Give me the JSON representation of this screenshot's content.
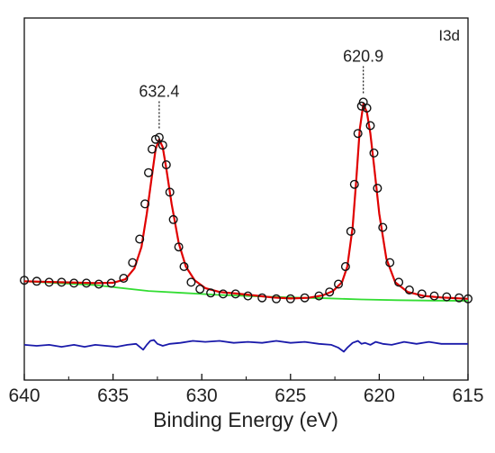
{
  "chart_data": {
    "type": "line",
    "title": "",
    "panel_label": "I3d",
    "xlabel": "Binding Energy (eV)",
    "ylabel": "",
    "xlim": [
      640,
      615
    ],
    "x_reversed": true,
    "y_ticks_shown": false,
    "grid": false,
    "legend": "none",
    "x_ticks": [
      640,
      635,
      630,
      625,
      620,
      615
    ],
    "x_tick_labels": [
      "640",
      "635",
      "630",
      "625",
      "620",
      "615"
    ],
    "annotations": [
      {
        "text": "632.4",
        "x": 632.4
      },
      {
        "text": "620.9",
        "x": 620.9
      }
    ],
    "colors": {
      "raw": "#111111",
      "fit": "#e00000",
      "background": "#33dd33",
      "residual": "#1a1aaa"
    },
    "series": [
      {
        "role": "raw",
        "marker": "open-circle",
        "x": [
          640.0,
          639.3,
          638.6,
          637.9,
          637.2,
          636.5,
          635.8,
          635.1,
          634.4,
          633.9,
          633.5,
          633.2,
          633.0,
          632.8,
          632.6,
          632.4,
          632.2,
          632.0,
          631.8,
          631.6,
          631.3,
          631.0,
          630.6,
          630.1,
          629.5,
          628.8,
          628.1,
          627.4,
          626.6,
          625.8,
          625.0,
          624.2,
          623.4,
          622.8,
          622.3,
          621.9,
          621.6,
          621.4,
          621.2,
          621.0,
          620.9,
          620.7,
          620.5,
          620.3,
          620.1,
          619.8,
          619.4,
          618.9,
          618.3,
          617.6,
          616.9,
          616.2,
          615.5,
          615.0
        ],
        "y": [
          0.11,
          0.105,
          0.1,
          0.1,
          0.095,
          0.095,
          0.09,
          0.095,
          0.12,
          0.2,
          0.32,
          0.5,
          0.66,
          0.78,
          0.83,
          0.84,
          0.8,
          0.7,
          0.56,
          0.42,
          0.28,
          0.18,
          0.1,
          0.065,
          0.045,
          0.04,
          0.04,
          0.03,
          0.02,
          0.015,
          0.015,
          0.02,
          0.03,
          0.05,
          0.09,
          0.18,
          0.36,
          0.6,
          0.86,
          1.0,
          1.02,
          0.99,
          0.9,
          0.76,
          0.58,
          0.38,
          0.2,
          0.1,
          0.06,
          0.04,
          0.03,
          0.025,
          0.02,
          0.015
        ]
      },
      {
        "role": "fit",
        "x": [
          640.0,
          638.0,
          636.0,
          635.0,
          634.3,
          633.8,
          633.4,
          633.1,
          632.8,
          632.6,
          632.4,
          632.2,
          632.0,
          631.7,
          631.3,
          630.9,
          630.4,
          629.8,
          629.0,
          628.0,
          627.0,
          626.0,
          625.0,
          624.0,
          623.2,
          622.6,
          622.1,
          621.8,
          621.5,
          621.3,
          621.1,
          620.9,
          620.7,
          620.5,
          620.3,
          620.0,
          619.6,
          619.1,
          618.4,
          617.5,
          616.5,
          615.0
        ],
        "y": [
          0.105,
          0.1,
          0.095,
          0.097,
          0.115,
          0.17,
          0.28,
          0.45,
          0.65,
          0.78,
          0.83,
          0.79,
          0.68,
          0.5,
          0.3,
          0.18,
          0.11,
          0.07,
          0.05,
          0.042,
          0.032,
          0.022,
          0.017,
          0.02,
          0.032,
          0.055,
          0.1,
          0.18,
          0.38,
          0.62,
          0.88,
          1.01,
          0.97,
          0.86,
          0.7,
          0.45,
          0.22,
          0.1,
          0.05,
          0.03,
          0.022,
          0.015
        ]
      },
      {
        "role": "background",
        "x": [
          640.0,
          636.0,
          633.0,
          631.0,
          629.0,
          627.0,
          625.0,
          623.0,
          621.0,
          619.0,
          617.0,
          615.0
        ],
        "y": [
          0.105,
          0.085,
          0.055,
          0.045,
          0.035,
          0.028,
          0.022,
          0.018,
          0.012,
          0.008,
          0.006,
          0.005
        ]
      },
      {
        "role": "residual",
        "x": [
          640.0,
          639.3,
          638.6,
          637.9,
          637.2,
          636.6,
          636.0,
          635.4,
          634.8,
          634.2,
          633.7,
          633.3,
          633.1,
          632.9,
          632.7,
          632.5,
          632.2,
          631.8,
          631.2,
          630.5,
          629.8,
          629.0,
          628.2,
          627.4,
          626.6,
          625.8,
          625.0,
          624.2,
          623.4,
          622.7,
          622.3,
          622.0,
          621.8,
          621.5,
          621.2,
          621.0,
          620.8,
          620.5,
          620.2,
          619.8,
          619.3,
          618.6,
          617.9,
          617.2,
          616.5,
          615.8,
          615.0
        ],
        "y": [
          -0.22,
          -0.225,
          -0.22,
          -0.23,
          -0.22,
          -0.23,
          -0.22,
          -0.225,
          -0.23,
          -0.22,
          -0.215,
          -0.245,
          -0.22,
          -0.2,
          -0.195,
          -0.215,
          -0.225,
          -0.215,
          -0.21,
          -0.2,
          -0.205,
          -0.2,
          -0.21,
          -0.205,
          -0.21,
          -0.2,
          -0.21,
          -0.205,
          -0.215,
          -0.22,
          -0.235,
          -0.255,
          -0.235,
          -0.21,
          -0.2,
          -0.215,
          -0.21,
          -0.22,
          -0.205,
          -0.215,
          -0.22,
          -0.205,
          -0.215,
          -0.205,
          -0.215,
          -0.215,
          -0.215
        ]
      }
    ]
  }
}
